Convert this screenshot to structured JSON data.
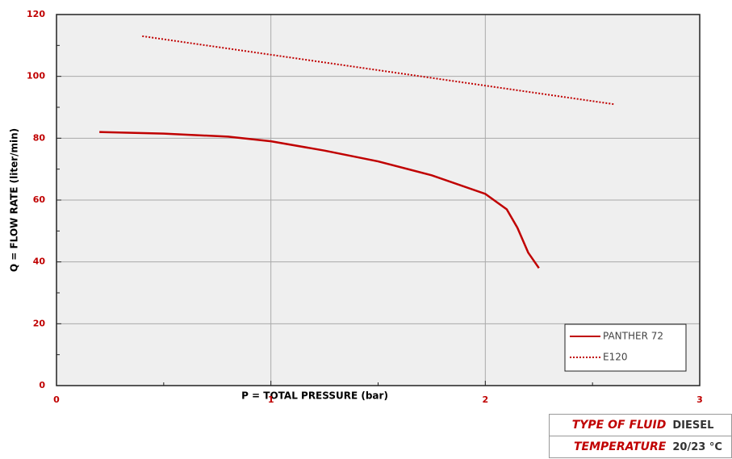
{
  "chart_data": {
    "type": "line",
    "xlabel": "P = TOTAL PRESSURE (bar)",
    "ylabel": "Q = FLOW RATE (liter/min)",
    "series": [
      {
        "name": "PANTHER 72",
        "color": "#c00000",
        "style": "solid",
        "x": [
          0.2,
          0.5,
          0.8,
          1.0,
          1.25,
          1.5,
          1.75,
          2.0,
          2.1,
          2.15,
          2.2,
          2.25
        ],
        "values": [
          82,
          81.5,
          80.5,
          79,
          76,
          72.5,
          68,
          62,
          57,
          51,
          43,
          38
        ]
      },
      {
        "name": "E120",
        "color": "#c00000",
        "style": "dotted",
        "x": [
          0.4,
          2.6
        ],
        "values": [
          113,
          91
        ]
      }
    ],
    "xlim": [
      0,
      3
    ],
    "xticks": [
      0,
      1,
      2,
      3
    ],
    "xticks_minor": [
      0.5,
      1.5,
      2.5
    ],
    "ylim": [
      0,
      120
    ],
    "yticks": [
      0,
      20,
      40,
      60,
      80,
      100,
      120
    ],
    "yticks_minor": [
      10,
      30,
      50,
      70,
      90,
      110
    ],
    "grid": true,
    "legend": "lower right",
    "tick_color": "#c00000",
    "background": "#efefef"
  },
  "info_table": {
    "rows": [
      [
        "TYPE OF FLUID",
        "DIESEL"
      ],
      [
        "TEMPERATURE",
        "20/23 °C"
      ]
    ]
  }
}
